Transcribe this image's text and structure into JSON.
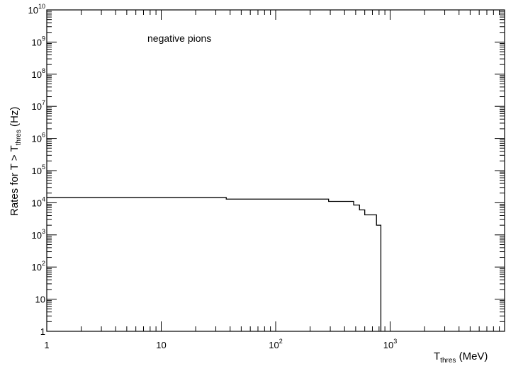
{
  "chart_data": {
    "type": "line",
    "step": true,
    "title": "",
    "annotation": "negative pions",
    "xlabel": {
      "main": "T",
      "sub": "thres",
      "unit": " (MeV)"
    },
    "ylabel": {
      "prefix": "Rates for T > T",
      "sub": "thres",
      "unit": " (Hz)"
    },
    "xscale": "log",
    "yscale": "log",
    "xlim": [
      1,
      10000
    ],
    "ylim": [
      1,
      10000000000
    ],
    "grid": false,
    "x_ticks": [
      {
        "value": 1,
        "label": "1"
      },
      {
        "value": 10,
        "label": "10"
      },
      {
        "value": 100,
        "label": "10",
        "exp": "2"
      },
      {
        "value": 1000,
        "label": "10",
        "exp": "3"
      }
    ],
    "y_ticks": [
      {
        "value": 1,
        "label": "1"
      },
      {
        "value": 10,
        "label": "10"
      },
      {
        "value": 100,
        "label": "10",
        "exp": "2"
      },
      {
        "value": 1000,
        "label": "10",
        "exp": "3"
      },
      {
        "value": 10000,
        "label": "10",
        "exp": "4"
      },
      {
        "value": 100000,
        "label": "10",
        "exp": "5"
      },
      {
        "value": 1000000,
        "label": "10",
        "exp": "6"
      },
      {
        "value": 10000000,
        "label": "10",
        "exp": "7"
      },
      {
        "value": 100000000,
        "label": "10",
        "exp": "8"
      },
      {
        "value": 1000000000,
        "label": "10",
        "exp": "9"
      },
      {
        "value": 10000000000,
        "label": "10",
        "exp": "10"
      }
    ],
    "series": [
      {
        "values": [
          {
            "x": 1,
            "y": 14500
          },
          {
            "x": 37,
            "y": 14500
          },
          {
            "x": 37,
            "y": 13000
          },
          {
            "x": 290,
            "y": 13000
          },
          {
            "x": 290,
            "y": 11000
          },
          {
            "x": 480,
            "y": 11000
          },
          {
            "x": 480,
            "y": 8500
          },
          {
            "x": 540,
            "y": 8500
          },
          {
            "x": 540,
            "y": 6000
          },
          {
            "x": 600,
            "y": 6000
          },
          {
            "x": 600,
            "y": 4200
          },
          {
            "x": 760,
            "y": 4200
          },
          {
            "x": 760,
            "y": 2000
          },
          {
            "x": 830,
            "y": 2000
          },
          {
            "x": 830,
            "y": 1
          }
        ]
      }
    ]
  }
}
